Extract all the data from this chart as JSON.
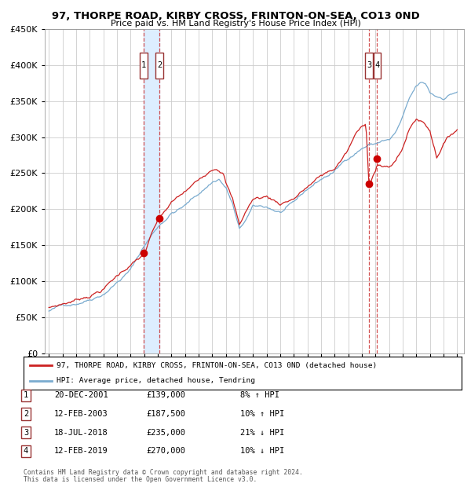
{
  "title": "97, THORPE ROAD, KIRBY CROSS, FRINTON-ON-SEA, CO13 0ND",
  "subtitle": "Price paid vs. HM Land Registry's House Price Index (HPI)",
  "legend_line1": "97, THORPE ROAD, KIRBY CROSS, FRINTON-ON-SEA, CO13 0ND (detached house)",
  "legend_line2": "HPI: Average price, detached house, Tendring",
  "footer1": "Contains HM Land Registry data © Crown copyright and database right 2024.",
  "footer2": "This data is licensed under the Open Government Licence v3.0.",
  "transactions": [
    {
      "num": 1,
      "date": "20-DEC-2001",
      "price": 139000,
      "pct": "8%",
      "dir": "↑",
      "decimal_date": 2001.97
    },
    {
      "num": 2,
      "date": "12-FEB-2003",
      "price": 187500,
      "pct": "10%",
      "dir": "↑",
      "decimal_date": 2003.12
    },
    {
      "num": 3,
      "date": "18-JUL-2018",
      "price": 235000,
      "pct": "21%",
      "dir": "↓",
      "decimal_date": 2018.54
    },
    {
      "num": 4,
      "date": "12-FEB-2019",
      "price": 270000,
      "pct": "10%",
      "dir": "↓",
      "decimal_date": 2019.12
    }
  ],
  "hpi_color": "#7aabcf",
  "price_color": "#cc2222",
  "dot_color": "#cc0000",
  "vspan_color": "#ddeeff",
  "vline_color": "#cc3333",
  "grid_color": "#cccccc",
  "bg_color": "#ffffff",
  "ylim": [
    0,
    450000
  ],
  "yticks": [
    0,
    50000,
    100000,
    150000,
    200000,
    250000,
    300000,
    350000,
    400000,
    450000
  ],
  "xlim_start": 1994.7,
  "xlim_end": 2025.5,
  "xticks": [
    1995,
    1996,
    1997,
    1998,
    1999,
    2000,
    2001,
    2002,
    2003,
    2004,
    2005,
    2006,
    2007,
    2008,
    2009,
    2010,
    2011,
    2012,
    2013,
    2014,
    2015,
    2016,
    2017,
    2018,
    2019,
    2020,
    2021,
    2022,
    2023,
    2024,
    2025
  ],
  "hpi_anchors": [
    [
      1995.0,
      58000
    ],
    [
      1996.0,
      65000
    ],
    [
      1997.0,
      70000
    ],
    [
      1998.0,
      78000
    ],
    [
      1999.0,
      88000
    ],
    [
      2000.0,
      105000
    ],
    [
      2001.0,
      122000
    ],
    [
      2002.0,
      155000
    ],
    [
      2003.0,
      182000
    ],
    [
      2004.0,
      202000
    ],
    [
      2005.0,
      212000
    ],
    [
      2006.0,
      228000
    ],
    [
      2007.0,
      245000
    ],
    [
      2007.5,
      250000
    ],
    [
      2008.0,
      238000
    ],
    [
      2008.5,
      215000
    ],
    [
      2009.0,
      178000
    ],
    [
      2009.5,
      192000
    ],
    [
      2010.0,
      208000
    ],
    [
      2011.0,
      207000
    ],
    [
      2012.0,
      200000
    ],
    [
      2013.0,
      210000
    ],
    [
      2014.0,
      228000
    ],
    [
      2015.0,
      242000
    ],
    [
      2016.0,
      253000
    ],
    [
      2017.0,
      272000
    ],
    [
      2018.0,
      287000
    ],
    [
      2018.5,
      292000
    ],
    [
      2019.0,
      293000
    ],
    [
      2019.5,
      298000
    ],
    [
      2020.0,
      298000
    ],
    [
      2020.5,
      308000
    ],
    [
      2021.0,
      328000
    ],
    [
      2021.5,
      352000
    ],
    [
      2022.0,
      368000
    ],
    [
      2022.3,
      372000
    ],
    [
      2022.7,
      370000
    ],
    [
      2023.0,
      358000
    ],
    [
      2023.5,
      353000
    ],
    [
      2024.0,
      352000
    ],
    [
      2024.5,
      358000
    ],
    [
      2025.0,
      362000
    ]
  ],
  "price_anchors": [
    [
      1995.0,
      62000
    ],
    [
      1996.0,
      68000
    ],
    [
      1997.0,
      74000
    ],
    [
      1998.0,
      82000
    ],
    [
      1999.0,
      92000
    ],
    [
      2000.0,
      110000
    ],
    [
      2001.0,
      127000
    ],
    [
      2001.97,
      139000
    ],
    [
      2002.5,
      165000
    ],
    [
      2003.0,
      185000
    ],
    [
      2003.12,
      187500
    ],
    [
      2004.0,
      208000
    ],
    [
      2005.0,
      222000
    ],
    [
      2006.0,
      237000
    ],
    [
      2007.0,
      257000
    ],
    [
      2007.3,
      260000
    ],
    [
      2007.8,
      257000
    ],
    [
      2008.0,
      243000
    ],
    [
      2008.5,
      218000
    ],
    [
      2009.0,
      182000
    ],
    [
      2009.5,
      202000
    ],
    [
      2010.0,
      218000
    ],
    [
      2011.0,
      222000
    ],
    [
      2012.0,
      213000
    ],
    [
      2013.0,
      222000
    ],
    [
      2014.0,
      238000
    ],
    [
      2015.0,
      252000
    ],
    [
      2016.0,
      262000
    ],
    [
      2017.0,
      288000
    ],
    [
      2017.5,
      308000
    ],
    [
      2018.0,
      318000
    ],
    [
      2018.3,
      323000
    ],
    [
      2018.54,
      235000
    ],
    [
      2018.7,
      248000
    ],
    [
      2019.0,
      262000
    ],
    [
      2019.12,
      270000
    ],
    [
      2019.5,
      267000
    ],
    [
      2020.0,
      263000
    ],
    [
      2020.5,
      273000
    ],
    [
      2021.0,
      292000
    ],
    [
      2021.5,
      318000
    ],
    [
      2022.0,
      332000
    ],
    [
      2022.5,
      328000
    ],
    [
      2023.0,
      318000
    ],
    [
      2023.5,
      282000
    ],
    [
      2024.0,
      302000
    ],
    [
      2024.5,
      312000
    ],
    [
      2025.0,
      322000
    ]
  ]
}
